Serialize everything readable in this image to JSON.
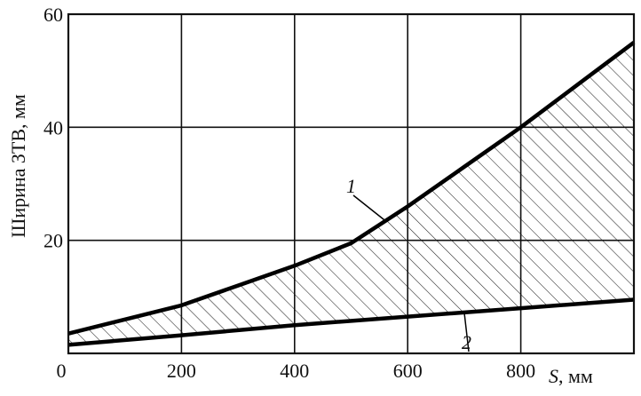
{
  "chart_data": {
    "type": "area",
    "xlabel": "S, мм",
    "xlabel_var": "S",
    "xlabel_unit": ", мм",
    "ylabel": "Ширина ЗТВ, мм",
    "xlim": [
      0,
      1000
    ],
    "ylim": [
      0,
      60
    ],
    "x_ticks": [
      0,
      200,
      400,
      600,
      800
    ],
    "y_ticks": [
      20,
      40,
      60
    ],
    "x_tick_labels": [
      "0",
      "200",
      "400",
      "600",
      "800"
    ],
    "y_tick_labels": [
      "20",
      "40",
      "60"
    ],
    "grid": true,
    "shaded_region": "hatched area between curves 1 and 2",
    "series": [
      {
        "name": "1",
        "x": [
          0,
          100,
          200,
          300,
          400,
          500,
          600,
          700,
          800,
          900,
          1000
        ],
        "values": [
          3.5,
          6,
          8.5,
          12,
          15.5,
          19.5,
          26,
          33,
          40,
          47.5,
          55
        ]
      },
      {
        "name": "2",
        "x": [
          0,
          200,
          400,
          600,
          800,
          1000
        ],
        "values": [
          1.5,
          3.2,
          5,
          6.5,
          8,
          9.5
        ]
      }
    ]
  }
}
